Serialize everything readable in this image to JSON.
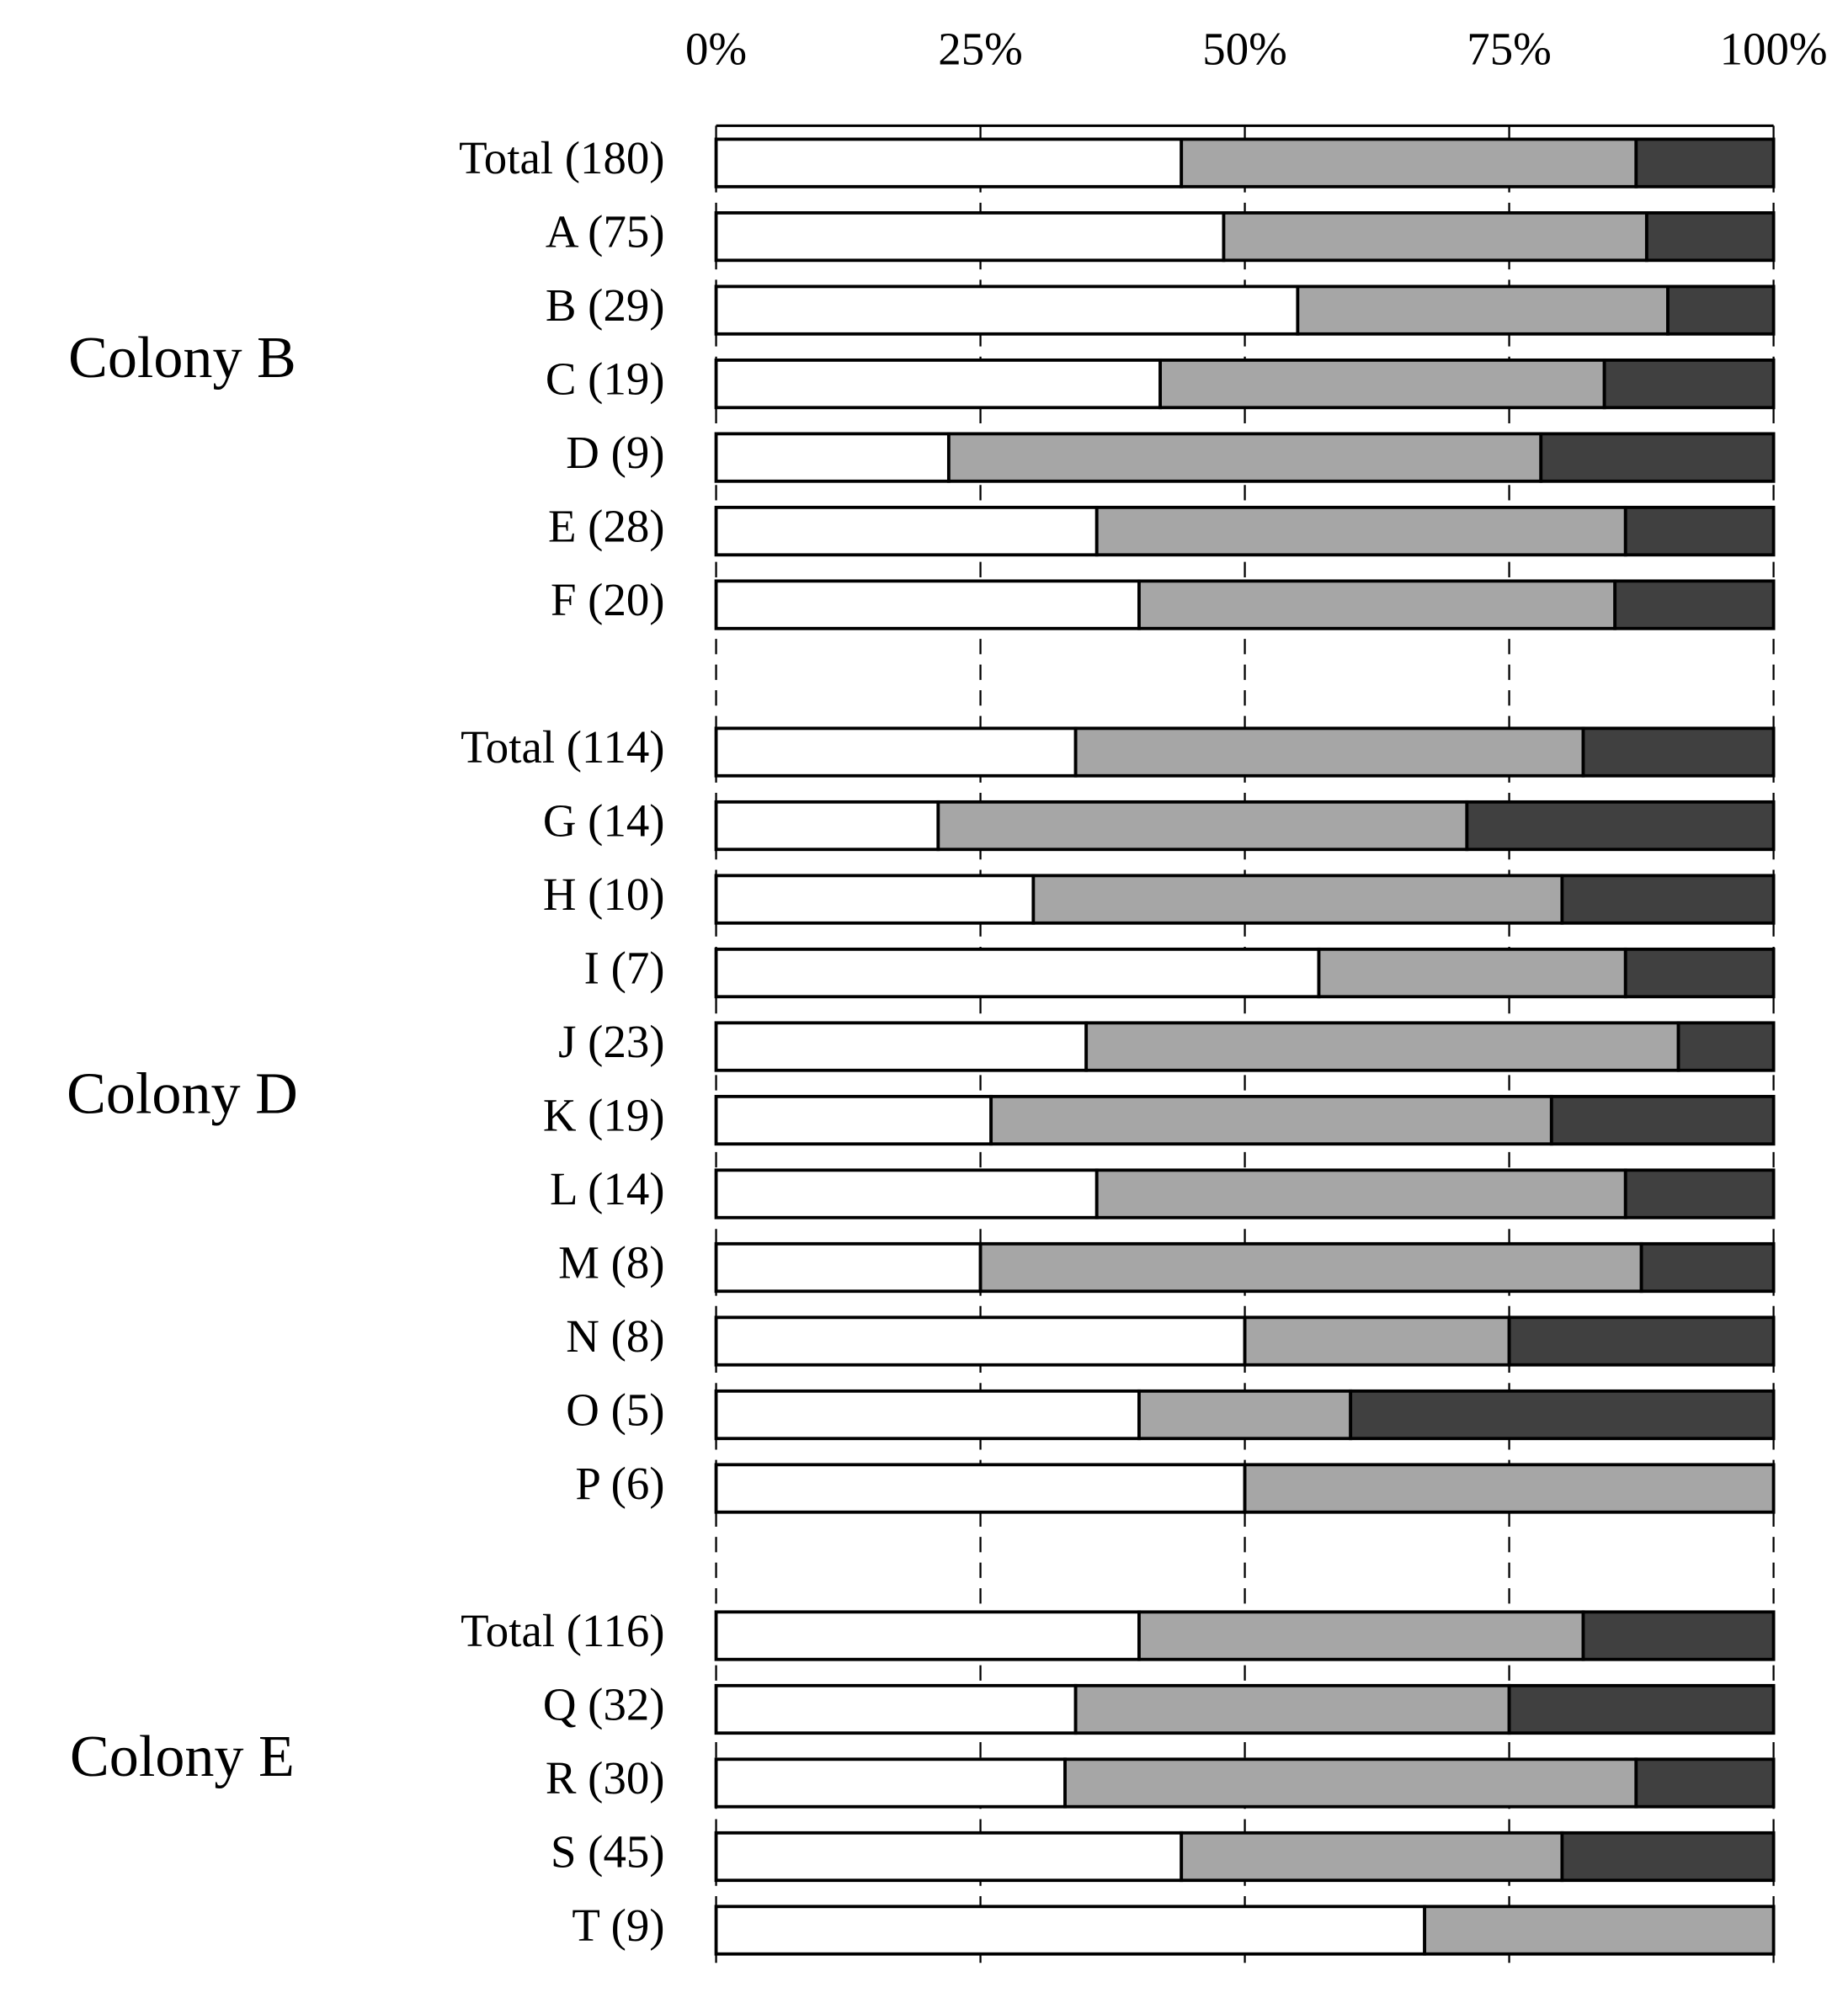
{
  "chart_data": {
    "type": "bar",
    "orientation": "horizontal",
    "stacked": true,
    "xlim": [
      0,
      100
    ],
    "xticks": [
      {
        "value": 0,
        "label": "0%"
      },
      {
        "value": 25,
        "label": "25%"
      },
      {
        "value": 50,
        "label": "50%"
      },
      {
        "value": 75,
        "label": "75%"
      },
      {
        "value": 100,
        "label": "100%"
      }
    ],
    "grid": true,
    "colors": [
      "#ffffff",
      "#a6a6a6",
      "#404040"
    ],
    "panels": [
      {
        "title": "Colony B",
        "categories": [
          "Total (180)",
          "A (75)",
          "B (29)",
          "C (19)",
          "D (9)",
          "E (28)",
          "F (20)"
        ],
        "series": [
          {
            "values": [
              44,
              48,
              55,
              42,
              22,
              36,
              40
            ]
          },
          {
            "values": [
              43,
              40,
              35,
              42,
              56,
              50,
              45
            ]
          },
          {
            "values": [
              13,
              12,
              10,
              16,
              22,
              14,
              15
            ]
          }
        ]
      },
      {
        "title": "Colony D",
        "categories": [
          "Total (114)",
          "G (14)",
          "H (10)",
          "I (7)",
          "J (23)",
          "K (19)",
          "L (14)",
          "M (8)",
          "N (8)",
          "O (5)",
          "P (6)"
        ],
        "series": [
          {
            "values": [
              34,
              21,
              30,
              57,
              35,
              26,
              36,
              25,
              50,
              40,
              50
            ]
          },
          {
            "values": [
              48,
              50,
              50,
              29,
              56,
              53,
              50,
              62.5,
              25,
              20,
              50
            ]
          },
          {
            "values": [
              18,
              29,
              20,
              14,
              9,
              21,
              14,
              12.5,
              25,
              40,
              0
            ]
          }
        ]
      },
      {
        "title": "Colony E",
        "categories": [
          "Total (116)",
          "Q (32)",
          "R (30)",
          "S (45)",
          "T (9)"
        ],
        "series": [
          {
            "values": [
              40,
              34,
              33,
              44,
              67
            ]
          },
          {
            "values": [
              42,
              41,
              54,
              36,
              33
            ]
          },
          {
            "values": [
              18,
              25,
              13,
              20,
              0
            ]
          }
        ]
      }
    ]
  }
}
